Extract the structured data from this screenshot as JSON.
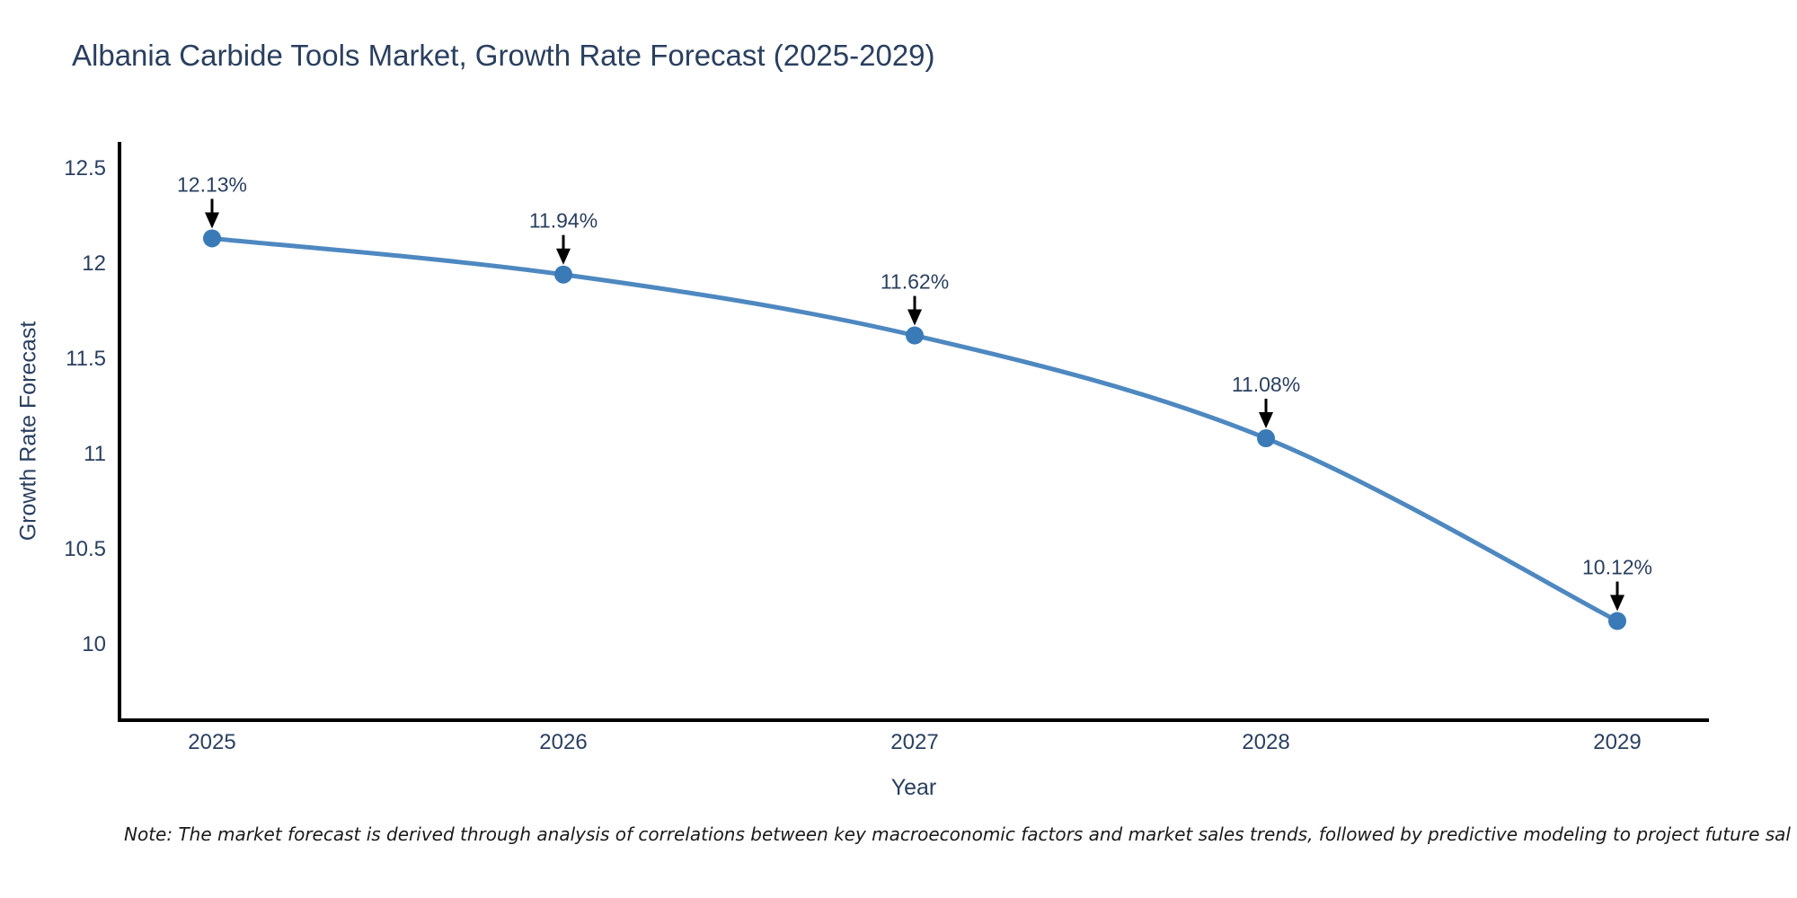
{
  "title": "Albania Carbide Tools Market, Growth Rate Forecast (2025-2029)",
  "note": "Note: The market forecast is derived through analysis of correlations between key macroeconomic factors and market sales trends, followed by predictive modeling to project future sal",
  "chart_data": {
    "type": "line",
    "title": "Albania Carbide Tools Market, Growth Rate Forecast (2025-2029)",
    "x": [
      2025,
      2026,
      2027,
      2028,
      2029
    ],
    "xtick_labels": [
      "2025",
      "2026",
      "2027",
      "2028",
      "2029"
    ],
    "series": [
      {
        "name": "Growth Rate Forecast",
        "values": [
          12.13,
          11.94,
          11.62,
          11.08,
          10.12
        ]
      }
    ],
    "point_labels": [
      "12.13%",
      "11.94%",
      "11.62%",
      "11.08%",
      "10.12%"
    ],
    "xlabel": "Year",
    "ylabel": "Growth Rate Forecast",
    "yticks": [
      12.5,
      12,
      11.5,
      11,
      10.5,
      10
    ],
    "ytick_labels": [
      "12.5",
      "12",
      "11.5",
      "11",
      "10.5",
      "10"
    ],
    "ylim": [
      9.6,
      12.7
    ],
    "grid": false,
    "legend": "none",
    "line_style": "smooth",
    "marker": "circle",
    "annotation_style": "value-above-with-down-arrow"
  },
  "colors": {
    "background": "#ffffff",
    "line": "#4e88c0",
    "marker": "#3a7ab6",
    "axis": "#000000",
    "text": "#2a3f5f",
    "arrow": "#000000",
    "note_text": "#1a1a1a"
  }
}
